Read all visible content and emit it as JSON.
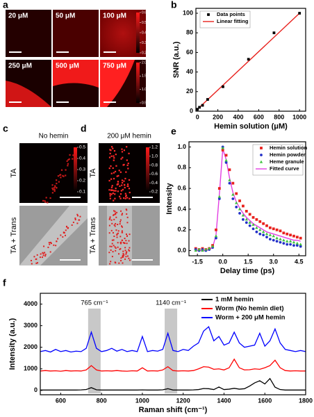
{
  "panel_a": {
    "label": "a",
    "images": [
      "20 μM",
      "50 μM",
      "100 μM",
      "250 μM",
      "500 μM",
      "750 μM"
    ],
    "colorbar_top": [
      0.6,
      0.5,
      0.4,
      0.3,
      0.2
    ],
    "colorbar_bottom": [
      {
        "value": 2,
        "label": "2.0"
      },
      1.5,
      {
        "value": 1,
        "label": "1.0"
      },
      0.5
    ]
  },
  "panel_c": {
    "label": "c",
    "title": "No hemin",
    "row_labels": [
      "TA",
      "TA + Trans"
    ],
    "colorbar": [
      0.5,
      0.4,
      0.3,
      0.2,
      0.1
    ]
  },
  "panel_d": {
    "label": "d",
    "title": "200 μM hemin",
    "row_labels": [
      "TA",
      "TA + Trans"
    ],
    "colorbar": [
      1.2,
      {
        "value": 1,
        "label": "1.0"
      },
      0.8,
      0.6,
      0.4,
      0.2
    ]
  },
  "chart_data": [
    {
      "panel_label": "b",
      "type": "scatter",
      "xlabel": "Hemin solution (μM)",
      "ylabel": "SNR (a.u.)",
      "xlim": [
        -15,
        1060
      ],
      "ylim": [
        0,
        105
      ],
      "xticks": [
        0,
        200,
        400,
        600,
        800,
        1000
      ],
      "yticks": [
        0,
        20,
        40,
        60,
        80,
        100
      ],
      "legend": "upper left",
      "series": [
        {
          "name": "Data points",
          "color": "#000000",
          "mode": "markers",
          "marker": "square",
          "x": [
            0,
            20,
            50,
            100,
            250,
            500,
            750,
            1000
          ],
          "values": [
            2,
            4,
            6,
            12,
            25,
            53,
            80,
            100
          ]
        },
        {
          "name": "Linear fitting",
          "color": "#e8211d",
          "mode": "line",
          "x": [
            0,
            1000
          ],
          "values": [
            2,
            100
          ]
        }
      ]
    },
    {
      "panel_label": "e",
      "type": "scatter",
      "xlabel": "Delay time (ps)",
      "ylabel": "Intensity",
      "xlim": [
        -2,
        4.9
      ],
      "ylim": [
        -0.05,
        1.05
      ],
      "xticks": [
        -1.5,
        {
          "value": 0,
          "label": "0.0"
        },
        1.5,
        {
          "value": 3,
          "label": "3.0"
        },
        4.5
      ],
      "yticks": [
        {
          "value": 0,
          "label": "0.0"
        },
        0.2,
        0.4,
        0.6,
        0.8,
        {
          "value": 1,
          "label": "1.0"
        }
      ],
      "legend": "upper right",
      "x": [
        -1.6,
        -1.4,
        -1.2,
        -1,
        -0.8,
        -0.6,
        -0.4,
        -0.2,
        0,
        0.2,
        0.4,
        0.6,
        0.8,
        1,
        1.2,
        1.4,
        1.6,
        1.8,
        2,
        2.2,
        2.4,
        2.6,
        2.8,
        3,
        3.2,
        3.4,
        3.6,
        3.8,
        4,
        4.2,
        4.4,
        4.6
      ],
      "series": [
        {
          "name": "Hemin solution",
          "color": "#e8211d",
          "mode": "markers",
          "marker": "square",
          "values": [
            0.02,
            0.01,
            0.02,
            0.01,
            0.02,
            0.05,
            0.2,
            0.6,
            0.97,
            0.92,
            0.78,
            0.65,
            0.55,
            0.48,
            0.43,
            0.38,
            0.35,
            0.32,
            0.3,
            0.28,
            0.26,
            0.24,
            0.22,
            0.21,
            0.2,
            0.19,
            0.17,
            0.16,
            0.15,
            0.14,
            0.13,
            0.12
          ]
        },
        {
          "name": "Hemin powder",
          "color": "#2330c8",
          "mode": "markers",
          "marker": "circle",
          "values": [
            0.01,
            0,
            0.01,
            0,
            0.01,
            0.03,
            0.12,
            0.5,
            1,
            0.85,
            0.65,
            0.5,
            0.42,
            0.36,
            0.3,
            0.27,
            0.24,
            0.21,
            0.18,
            0.16,
            0.15,
            0.13,
            0.11,
            0.1,
            0.09,
            0.08,
            0.07,
            0.06,
            0.06,
            0.05,
            0.05,
            0.04
          ]
        },
        {
          "name": "Heme granule",
          "color": "#3ec23e",
          "mode": "markers",
          "marker": "triangle",
          "values": [
            0,
            0.01,
            0,
            0.01,
            0.02,
            0.04,
            0.14,
            0.52,
            0.99,
            0.87,
            0.68,
            0.54,
            0.46,
            0.4,
            0.34,
            0.3,
            0.27,
            0.25,
            0.22,
            0.2,
            0.18,
            0.16,
            0.15,
            0.14,
            0.12,
            0.11,
            0.1,
            0.09,
            0.09,
            0.08,
            0.07,
            0.06
          ]
        },
        {
          "name": "Fitted curve",
          "color": "#e23ee2",
          "mode": "line",
          "values": [
            0,
            0,
            0,
            0,
            0.01,
            0.03,
            0.15,
            0.55,
            0.98,
            0.88,
            0.7,
            0.56,
            0.47,
            0.41,
            0.36,
            0.32,
            0.29,
            0.26,
            0.24,
            0.22,
            0.2,
            0.18,
            0.17,
            0.16,
            0.15,
            0.14,
            0.13,
            0.12,
            0.11,
            0.1,
            0.1,
            0.09
          ]
        }
      ]
    },
    {
      "panel_label": "f",
      "type": "line",
      "xlabel": "Raman shift (cm⁻¹)",
      "ylabel": "Intensity (a.u.)",
      "xlim": [
        500,
        1800
      ],
      "ylim": [
        -200,
        4500
      ],
      "xticks": [
        600,
        800,
        1000,
        1200,
        1400,
        1600,
        1800
      ],
      "yticks": [
        0,
        1000,
        2000,
        3000,
        4000
      ],
      "legend": "upper right",
      "annotations": [
        {
          "text": "765 cm⁻¹",
          "x": 765
        },
        {
          "text": "1140 cm⁻¹",
          "x": 1140
        }
      ],
      "x": [
        500,
        525,
        550,
        575,
        600,
        625,
        650,
        675,
        700,
        725,
        750,
        775,
        800,
        825,
        850,
        875,
        900,
        925,
        950,
        975,
        1000,
        1025,
        1050,
        1075,
        1100,
        1125,
        1150,
        1175,
        1200,
        1225,
        1250,
        1275,
        1300,
        1325,
        1350,
        1375,
        1400,
        1425,
        1450,
        1475,
        1500,
        1525,
        1550,
        1575,
        1600,
        1625,
        1650,
        1675,
        1700,
        1725,
        1750,
        1775,
        1800
      ],
      "series": [
        {
          "name": "1 mM hemin",
          "color": "#000000",
          "values": [
            20,
            20,
            20,
            20,
            20,
            20,
            20,
            20,
            25,
            40,
            130,
            30,
            20,
            20,
            20,
            20,
            20,
            20,
            20,
            20,
            25,
            20,
            20,
            20,
            30,
            80,
            20,
            20,
            20,
            20,
            25,
            40,
            90,
            80,
            40,
            160,
            40,
            60,
            100,
            60,
            80,
            200,
            350,
            450,
            300,
            550,
            150,
            40,
            20,
            20,
            20,
            20,
            20
          ]
        },
        {
          "name": "Worm (No hemin diet)",
          "color": "#ff0000",
          "values": [
            900,
            920,
            900,
            910,
            890,
            920,
            900,
            910,
            900,
            950,
            1150,
            950,
            900,
            910,
            900,
            920,
            900,
            890,
            910,
            900,
            1050,
            900,
            910,
            900,
            950,
            1100,
            920,
            900,
            910,
            900,
            920,
            1000,
            1100,
            1080,
            980,
            1000,
            950,
            1050,
            1450,
            1050,
            950,
            960,
            1000,
            980,
            1050,
            1150,
            1400,
            1050,
            920,
            900,
            910,
            900,
            900
          ]
        },
        {
          "name": "Worm + 200 μM hemin",
          "color": "#0000ff",
          "values": [
            1800,
            1850,
            1780,
            1900,
            1800,
            1850,
            1780,
            1820,
            1800,
            1950,
            2700,
            1950,
            1800,
            1850,
            1950,
            1820,
            1900,
            1800,
            1850,
            1800,
            2500,
            1800,
            1850,
            1820,
            1900,
            2650,
            1850,
            1800,
            1900,
            1850,
            2050,
            2200,
            2750,
            2950,
            2300,
            2500,
            2100,
            2200,
            2700,
            2200,
            2000,
            2050,
            2100,
            2650,
            2050,
            2300,
            2850,
            2200,
            1900,
            1850,
            1800,
            1850,
            1800
          ]
        }
      ]
    }
  ]
}
